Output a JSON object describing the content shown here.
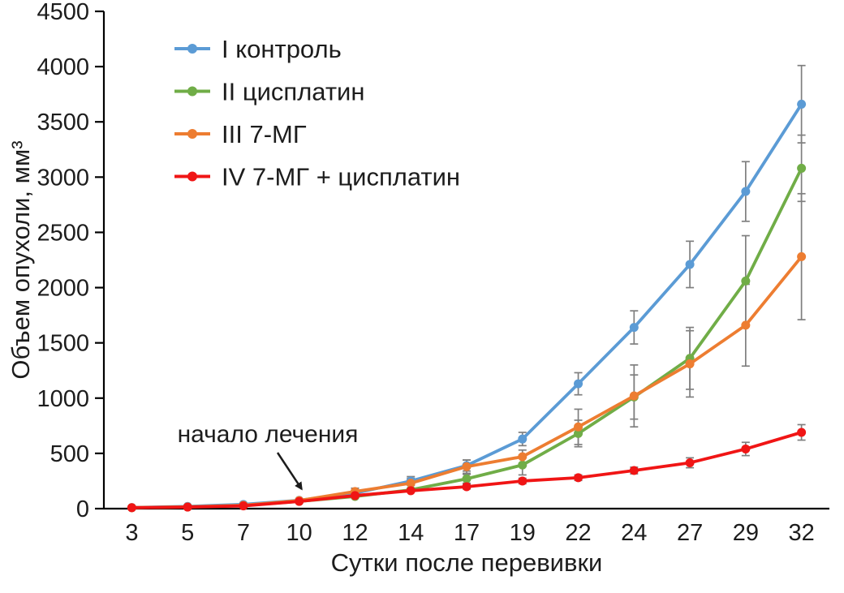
{
  "chart_data": {
    "type": "line",
    "title": "",
    "xlabel": "Сутки после перевивки",
    "ylabel": "Объем опухоли, мм³",
    "x": [
      3,
      5,
      7,
      10,
      12,
      14,
      17,
      19,
      22,
      24,
      27,
      29,
      32
    ],
    "x_tick_labels": [
      "3",
      "5",
      "7",
      "10",
      "12",
      "14",
      "17",
      "19",
      "22",
      "24",
      "27",
      "29",
      "32"
    ],
    "ylim": [
      0,
      4500
    ],
    "ytick_step": 500,
    "grid": false,
    "legend_position": "top-left",
    "axis_color": "#000000",
    "error_bar_color": "#7f7f7f",
    "series": [
      {
        "name": "I контроль",
        "color": "#5b9bd5",
        "values": [
          10,
          20,
          38,
          75,
          140,
          250,
          390,
          630,
          1130,
          1640,
          2210,
          2870,
          3660
        ],
        "errors": [
          0,
          0,
          0,
          0,
          0,
          40,
          50,
          60,
          100,
          150,
          210,
          270,
          350
        ]
      },
      {
        "name": "II цисплатин",
        "color": "#70ad47",
        "values": [
          8,
          15,
          28,
          66,
          110,
          170,
          270,
          395,
          680,
          1010,
          1360,
          2060,
          3080
        ],
        "errors": [
          0,
          0,
          0,
          0,
          0,
          0,
          40,
          90,
          120,
          200,
          280,
          410,
          300
        ]
      },
      {
        "name": "III 7-МГ",
        "color": "#ed7d31",
        "values": [
          9,
          16,
          30,
          73,
          155,
          230,
          380,
          470,
          740,
          1020,
          1310,
          1660,
          2280
        ],
        "errors": [
          0,
          0,
          0,
          0,
          30,
          45,
          60,
          60,
          160,
          280,
          300,
          370,
          570
        ]
      },
      {
        "name": "IV 7-МГ + цисплатин",
        "color": "#f01515",
        "values": [
          8,
          14,
          25,
          65,
          118,
          162,
          198,
          250,
          280,
          345,
          415,
          540,
          690
        ],
        "errors": [
          0,
          0,
          0,
          0,
          0,
          0,
          20,
          25,
          25,
          30,
          45,
          60,
          70
        ]
      }
    ],
    "annotation": {
      "text": "начало лечения",
      "target_x": 10
    }
  }
}
